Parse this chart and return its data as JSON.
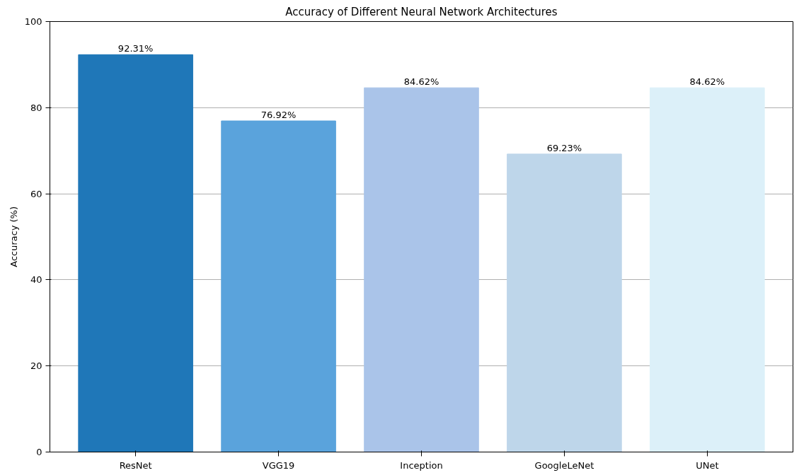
{
  "chart_data": {
    "type": "bar",
    "title": "Accuracy of Different Neural Network Architectures",
    "ylabel": "Accuracy (%)",
    "categories": [
      "ResNet",
      "VGG19",
      "Inception",
      "GoogleLeNet",
      "UNet"
    ],
    "values": [
      92.31,
      76.92,
      84.62,
      69.23,
      84.62
    ],
    "colors": [
      "#1f77b8",
      "#5aa3dc",
      "#aac4e9",
      "#bed6ea",
      "#dcf0f9"
    ],
    "value_labels": [
      "92.31%",
      "76.92%",
      "84.62%",
      "69.23%",
      "84.62%"
    ],
    "ylim": [
      0,
      100
    ],
    "yticks": [
      0,
      20,
      40,
      60,
      80,
      100
    ],
    "grid": "y"
  }
}
